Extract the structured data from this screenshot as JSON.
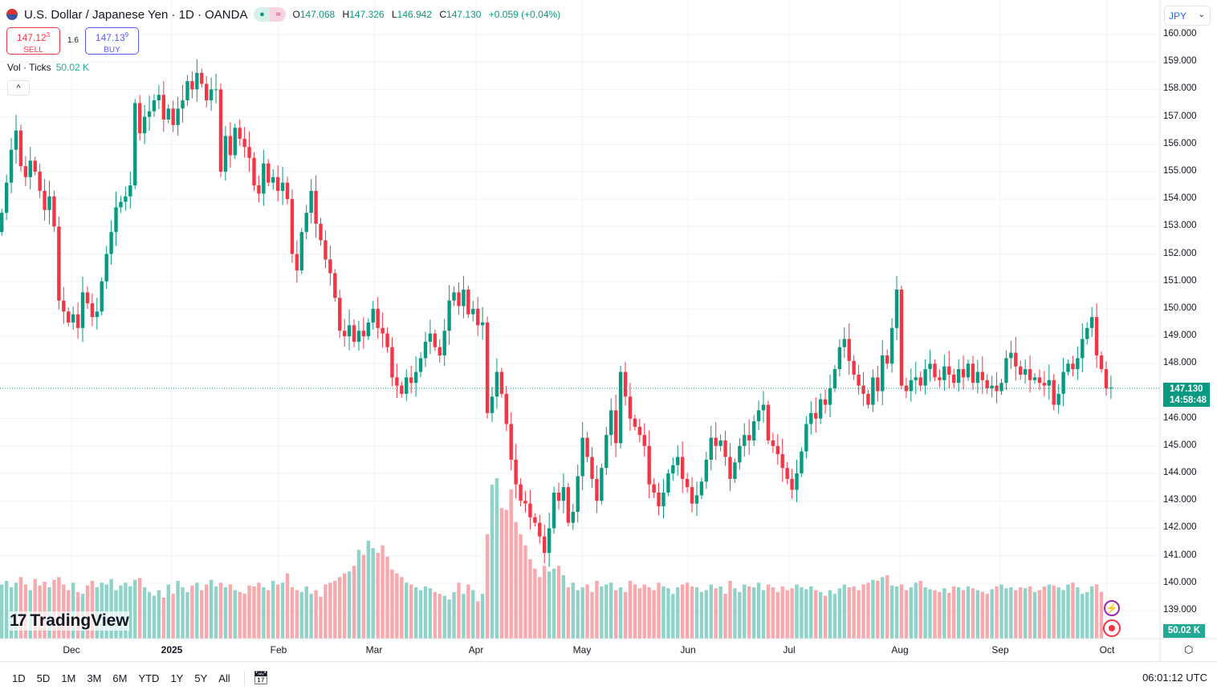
{
  "header": {
    "title": "U.S. Dollar / Japanese Yen · 1D · OANDA",
    "o_label": "O",
    "o": "147.068",
    "h_label": "H",
    "h": "147.326",
    "l_label": "L",
    "l": "146.942",
    "c_label": "C",
    "c": "147.130",
    "change": "+0.059 (+0.04%)",
    "market_icon": "dot-icon",
    "data_icon": "approx-icon"
  },
  "trade": {
    "sell_price": "147.12",
    "sell_sup": "3",
    "sell_label": "SELL",
    "spread": "1.6",
    "buy_price": "147.13",
    "buy_sup": "9",
    "buy_label": "BUY"
  },
  "volume_legend": {
    "label": "Vol · Ticks",
    "value": "50.02 K"
  },
  "currency": {
    "value": "JPY"
  },
  "price_axis": [
    "160.000",
    "159.000",
    "158.000",
    "157.000",
    "156.000",
    "155.000",
    "154.000",
    "153.000",
    "152.000",
    "151.000",
    "150.000",
    "149.000",
    "148.000",
    "146.000",
    "145.000",
    "144.000",
    "143.000",
    "142.000",
    "141.000",
    "140.000",
    "139.000"
  ],
  "last_price": {
    "price": "147.130",
    "countdown": "14:58:48",
    "volume": "50.02 K"
  },
  "time_axis": [
    "Dec",
    "2025",
    "Feb",
    "Mar",
    "Apr",
    "May",
    "Jun",
    "Jul",
    "Aug",
    "Sep",
    "Oct"
  ],
  "logo": "TradingView",
  "ranges": [
    "1D",
    "5D",
    "1M",
    "3M",
    "6M",
    "YTD",
    "1Y",
    "5Y",
    "All"
  ],
  "clock": "06:01:12 UTC",
  "colors": {
    "up": "#089981",
    "down": "#f23645",
    "vol_up": "#8fd3c8",
    "vol_down": "#f7a9ad"
  },
  "chart_data": {
    "type": "candlestick",
    "symbol": "USDJPY",
    "interval": "1D",
    "ylim": [
      138.2,
      160.5
    ],
    "first_open": 152.8,
    "closes": [
      153.5,
      154.6,
      155.8,
      156.5,
      155.2,
      154.8,
      155.4,
      155.0,
      154.3,
      153.6,
      154.1,
      153.0,
      150.3,
      149.9,
      149.5,
      149.8,
      149.3,
      150.6,
      150.2,
      149.7,
      149.9,
      151.0,
      152.0,
      152.8,
      153.7,
      153.9,
      154.1,
      154.5,
      157.5,
      156.4,
      157.0,
      157.2,
      157.6,
      157.8,
      156.9,
      157.3,
      156.7,
      157.3,
      157.6,
      158.3,
      158.0,
      158.6,
      158.2,
      157.6,
      158.0,
      158.0,
      155.0,
      156.3,
      155.6,
      156.6,
      156.2,
      155.9,
      155.5,
      154.5,
      154.2,
      155.3,
      154.6,
      154.8,
      154.3,
      154.6,
      154.0,
      152.0,
      151.4,
      152.8,
      153.5,
      154.3,
      153.1,
      152.5,
      151.8,
      151.3,
      150.4,
      149.2,
      149.0,
      149.4,
      148.8,
      149.2,
      149.0,
      149.5,
      150.0,
      149.3,
      149.1,
      148.6,
      147.5,
      147.2,
      146.9,
      147.5,
      147.3,
      147.7,
      148.2,
      148.8,
      149.1,
      148.6,
      148.3,
      149.2,
      150.3,
      150.6,
      150.1,
      150.7,
      149.8,
      150.0,
      149.4,
      149.5,
      146.2,
      146.8,
      147.7,
      146.9,
      145.8,
      144.5,
      143.6,
      143.0,
      142.9,
      142.4,
      142.2,
      141.7,
      141.1,
      142.0,
      143.3,
      143.0,
      143.5,
      142.2,
      142.6,
      143.9,
      145.3,
      144.6,
      143.8,
      143.0,
      144.2,
      145.4,
      146.3,
      145.1,
      147.7,
      146.8,
      146.0,
      145.7,
      145.4,
      145.0,
      143.6,
      143.3,
      142.8,
      143.3,
      144.0,
      144.3,
      144.6,
      143.8,
      143.5,
      142.9,
      143.2,
      143.7,
      144.5,
      145.3,
      145.0,
      145.2,
      144.6,
      143.8,
      144.4,
      145.0,
      145.4,
      145.2,
      145.9,
      146.3,
      146.5,
      145.2,
      145.0,
      144.7,
      144.2,
      143.8,
      143.4,
      144.0,
      144.8,
      145.8,
      146.2,
      146.0,
      146.7,
      146.5,
      147.1,
      147.8,
      148.6,
      148.9,
      148.1,
      147.6,
      147.2,
      146.9,
      146.5,
      147.5,
      147.0,
      148.3,
      148.0,
      149.3,
      150.7,
      147.2,
      147.0,
      147.4,
      147.5,
      147.2,
      147.8,
      148.0,
      147.5,
      147.4,
      147.9,
      147.6,
      147.3,
      147.8,
      147.5,
      148.0,
      147.3,
      147.7,
      147.4,
      147.1,
      147.2,
      147.0,
      147.3,
      148.2,
      148.4,
      147.9,
      147.6,
      147.8,
      147.4,
      147.5,
      147.3,
      147.2,
      147.4,
      146.5,
      146.9,
      147.7,
      148.0,
      147.8,
      148.2,
      148.9,
      149.3,
      149.7,
      148.3,
      147.8,
      147.1,
      147.13
    ],
    "volumes_k": [
      58,
      62,
      55,
      60,
      66,
      58,
      52,
      64,
      57,
      61,
      55,
      63,
      66,
      58,
      52,
      60,
      50,
      48,
      57,
      62,
      55,
      60,
      58,
      64,
      52,
      57,
      60,
      56,
      63,
      65,
      55,
      50,
      46,
      52,
      44,
      58,
      48,
      62,
      55,
      50,
      57,
      60,
      52,
      58,
      63,
      56,
      60,
      55,
      58,
      52,
      50,
      48,
      57,
      56,
      60,
      55,
      52,
      62,
      58,
      60,
      70,
      55,
      52,
      50,
      56,
      48,
      52,
      45,
      58,
      60,
      62,
      66,
      70,
      72,
      78,
      95,
      90,
      105,
      97,
      92,
      100,
      88,
      74,
      70,
      66,
      60,
      58,
      55,
      52,
      56,
      54,
      50,
      48,
      46,
      42,
      50,
      60,
      48,
      58,
      52,
      40,
      48,
      112,
      165,
      172,
      140,
      138,
      160,
      125,
      112,
      100,
      85,
      75,
      66,
      78,
      72,
      75,
      78,
      68,
      55,
      60,
      52,
      55,
      58,
      50,
      62,
      56,
      58,
      60,
      52,
      55,
      50,
      62,
      58,
      54,
      58,
      55,
      52,
      60,
      56,
      54,
      48,
      55,
      58,
      60,
      56,
      55,
      50,
      52,
      58,
      54,
      56,
      48,
      62,
      54,
      50,
      58,
      56,
      55,
      60,
      52,
      58,
      55,
      50,
      56,
      52,
      54,
      58,
      55,
      53,
      56,
      52,
      50,
      46,
      52,
      48,
      54,
      58,
      55,
      56,
      52,
      58,
      60,
      63,
      62,
      66,
      68,
      57,
      56,
      58,
      52,
      55,
      60,
      62,
      55,
      53,
      52,
      50,
      54,
      49,
      56,
      55,
      52,
      56,
      54,
      52,
      50,
      48,
      53,
      56,
      58,
      54,
      55,
      52,
      55,
      54,
      56,
      50,
      52,
      56,
      58,
      57,
      55,
      52,
      58,
      60,
      55,
      48,
      50,
      56,
      58,
      50.02
    ]
  }
}
